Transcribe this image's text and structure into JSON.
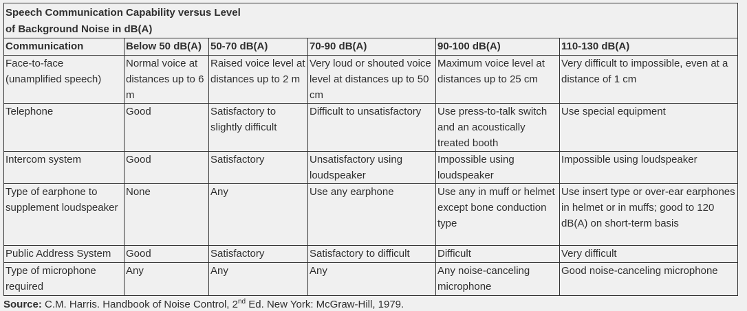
{
  "title": {
    "line1": "Speech Communication Capability versus Level",
    "line2": "of Background Noise in dB(A)"
  },
  "table": {
    "columns": [
      "Communication",
      "Below 50 dB(A)",
      "50-70 dB(A)",
      "70-90 dB(A)",
      "90-100 dB(A)",
      "110-130 dB(A)"
    ],
    "rows": [
      {
        "cells": [
          "Face-to-face (unamplified speech)",
          "Normal voice at distances up to 6 m",
          "Raised voice level at distances up to 2 m",
          "Very loud or shouted voice level at distances up to 50 cm",
          "Maximum voice level at distances up to 25 cm",
          "Very difficult to impossible, even at a distance of 1 cm"
        ]
      },
      {
        "cells": [
          "Telephone",
          "Good",
          "Satisfactory to slightly difficult",
          "Difficult to unsatisfactory",
          "Use press-to-talk switch and an acoustically treated booth",
          "Use special equipment"
        ]
      },
      {
        "cells": [
          "Intercom system",
          "Good",
          "Satisfactory",
          "Unsatisfactory using loudspeaker",
          "Impossible using loudspeaker",
          "Impossible using loudspeaker"
        ]
      },
      {
        "cells": [
          "Type of earphone to supplement loudspeaker",
          "None",
          "Any",
          "Use any earphone",
          "Use any in muff or helmet except bone conduction type",
          "Use insert type or over-ear earphones in helmet or in muffs; good to 120 dB(A) on short-term basis"
        ]
      },
      {
        "cells": [
          "Public Address System",
          "Good",
          "Satisfactory",
          "Satisfactory to difficult",
          "Difficult",
          "Very difficult"
        ]
      },
      {
        "cells": [
          "Type of microphone required",
          "Any",
          "Any",
          "Any",
          "Any noise-canceling microphone",
          "Good noise-canceling microphone"
        ]
      }
    ]
  },
  "source": {
    "label": "Source:",
    "before_sup": " C.M. Harris. Handbook of Noise Control, 2",
    "sup": "nd",
    "after_sup": " Ed. New York: McGraw-Hill, 1979."
  },
  "colors": {
    "background": "#f0f0f0",
    "border": "#333333",
    "text": "#2f2f2f"
  }
}
